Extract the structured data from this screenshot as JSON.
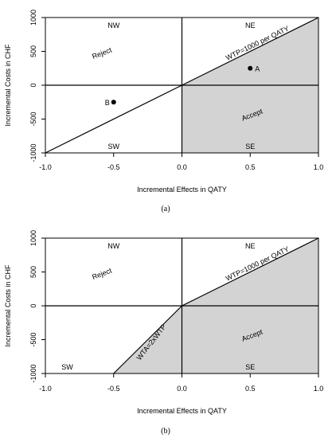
{
  "chart_data": [
    {
      "type": "scatter",
      "caption": "(a)",
      "xlabel": "Incremental Effects in QATY",
      "ylabel": "Incremental Costs in CHF",
      "xlim": [
        -1.0,
        1.0
      ],
      "ylim": [
        -1000,
        1000
      ],
      "x_ticks": [
        "-1.0",
        "-0.5",
        "0.0",
        "0.5",
        "1.0"
      ],
      "y_ticks": [
        "-1000",
        "-500",
        "0",
        "500",
        "1000"
      ],
      "shaded_region": [
        [
          0,
          0
        ],
        [
          1.0,
          1000
        ],
        [
          1.0,
          -1000
        ],
        [
          0,
          -1000
        ]
      ],
      "threshold_lines": [
        {
          "label": "WTP=1000 per QATY",
          "points": [
            [
              -1.0,
              -1000
            ],
            [
              1.0,
              1000
            ]
          ]
        }
      ],
      "quadrant_labels": [
        "NW",
        "NE",
        "SW",
        "SE"
      ],
      "region_labels": [
        "Reject",
        "Accept"
      ],
      "points": [
        {
          "label": "A",
          "x": 0.5,
          "y": 250
        },
        {
          "label": "B",
          "x": -0.5,
          "y": -250
        }
      ]
    },
    {
      "type": "area",
      "caption": "(b)",
      "xlabel": "Incremental Effects in QATY",
      "ylabel": "Incremental Costs in CHF",
      "xlim": [
        -1.0,
        1.0
      ],
      "ylim": [
        -1000,
        1000
      ],
      "x_ticks": [
        "-1.0",
        "-0.5",
        "0.0",
        "0.5",
        "1.0"
      ],
      "y_ticks": [
        "-1000",
        "-500",
        "0",
        "500",
        "1000"
      ],
      "shaded_region": [
        [
          -0.5,
          -1000
        ],
        [
          0,
          0
        ],
        [
          1.0,
          1000
        ],
        [
          1.0,
          -1000
        ]
      ],
      "threshold_lines": [
        {
          "label": "WTP=1000 per QATY",
          "points": [
            [
              0,
              0
            ],
            [
              1.0,
              1000
            ]
          ]
        },
        {
          "label": "WTA=2xWTP",
          "points": [
            [
              -0.5,
              -1000
            ],
            [
              0,
              0
            ]
          ]
        }
      ],
      "quadrant_labels": [
        "NW",
        "NE",
        "SW",
        "SE"
      ],
      "region_labels": [
        "Reject",
        "Accept"
      ],
      "points": []
    }
  ]
}
